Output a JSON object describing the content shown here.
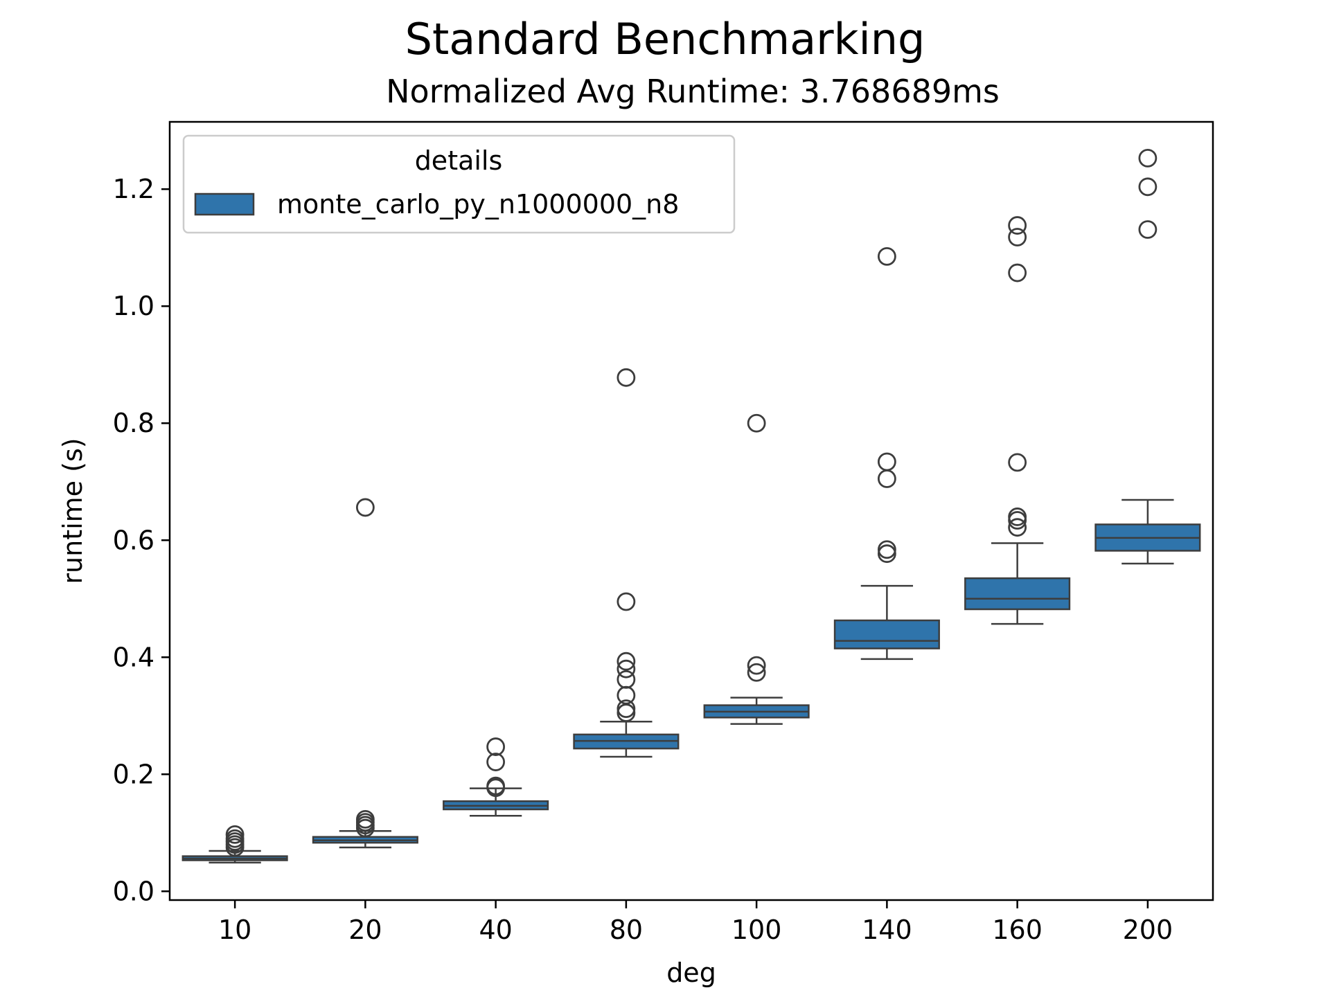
{
  "chart_data": {
    "type": "box",
    "title": "Standard Benchmarking",
    "subtitle": "Normalized Avg Runtime: 3.768689ms",
    "xlabel": "deg",
    "ylabel": "runtime (s)",
    "ylim": [
      -0.015,
      1.315
    ],
    "yticks": [
      "0.0",
      "0.2",
      "0.4",
      "0.6",
      "0.8",
      "1.0",
      "1.2"
    ],
    "ytick_values": [
      0.0,
      0.2,
      0.4,
      0.6,
      0.8,
      1.0,
      1.2
    ],
    "categories": [
      "10",
      "20",
      "40",
      "80",
      "100",
      "140",
      "160",
      "200"
    ],
    "legend": {
      "title": "details",
      "placement": "top-left"
    },
    "series": [
      {
        "name": "monte_carlo_py_n1000000_n8",
        "color": "#2f74ab",
        "boxes": [
          {
            "whisker_low": 0.049,
            "q1": 0.053,
            "median": 0.056,
            "q3": 0.06,
            "whisker_high": 0.069,
            "outliers": [
              0.075,
              0.08,
              0.085,
              0.09,
              0.097
            ]
          },
          {
            "whisker_low": 0.075,
            "q1": 0.083,
            "median": 0.087,
            "q3": 0.093,
            "whisker_high": 0.103,
            "outliers": [
              0.108,
              0.113,
              0.118,
              0.123,
              0.656
            ]
          },
          {
            "whisker_low": 0.129,
            "q1": 0.14,
            "median": 0.146,
            "q3": 0.154,
            "whisker_high": 0.176,
            "outliers": [
              0.177,
              0.18,
              0.221,
              0.247
            ]
          },
          {
            "whisker_low": 0.23,
            "q1": 0.244,
            "median": 0.257,
            "q3": 0.268,
            "whisker_high": 0.29,
            "outliers": [
              0.305,
              0.312,
              0.335,
              0.362,
              0.38,
              0.393,
              0.495,
              0.878
            ]
          },
          {
            "whisker_low": 0.286,
            "q1": 0.297,
            "median": 0.307,
            "q3": 0.318,
            "whisker_high": 0.331,
            "outliers": [
              0.374,
              0.386,
              0.8
            ]
          },
          {
            "whisker_low": 0.397,
            "q1": 0.415,
            "median": 0.428,
            "q3": 0.463,
            "whisker_high": 0.522,
            "outliers": [
              0.577,
              0.584,
              0.705,
              0.734,
              1.085
            ]
          },
          {
            "whisker_low": 0.457,
            "q1": 0.482,
            "median": 0.5,
            "q3": 0.535,
            "whisker_high": 0.595,
            "outliers": [
              0.622,
              0.634,
              0.64,
              0.733,
              1.057,
              1.118,
              1.138
            ]
          },
          {
            "whisker_low": 0.56,
            "q1": 0.582,
            "median": 0.604,
            "q3": 0.627,
            "whisker_high": 0.669,
            "outliers": [
              1.131,
              1.204,
              1.253
            ]
          }
        ]
      }
    ]
  }
}
